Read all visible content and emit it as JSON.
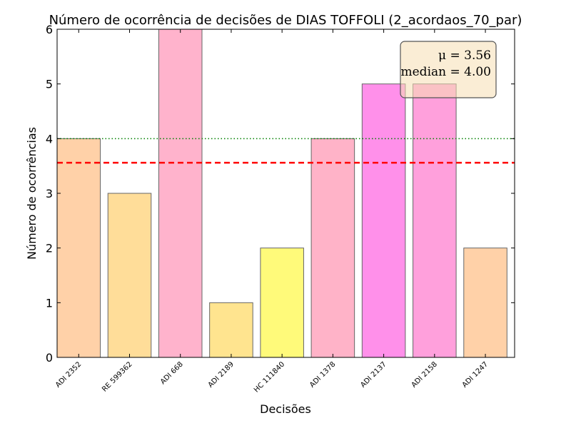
{
  "chart_data": {
    "type": "bar",
    "title": "Número de ocorrência de decisões de DIAS TOFFOLI (2_acordaos_70_par)",
    "xlabel": "Decisões",
    "ylabel": "Número de ocorrências",
    "categories": [
      "ADI 2352",
      "RE 599362",
      "ADI 668",
      "ADI 2189",
      "HC 111840",
      "ADI 1378",
      "ADI 2137",
      "ADI 2158",
      "ADI 1247"
    ],
    "values": [
      4,
      3,
      6,
      1,
      2,
      4,
      5,
      5,
      2
    ],
    "bar_colors": [
      "#FFD1A8",
      "#FFDD99",
      "#FFB3CC",
      "#FFE48F",
      "#FFFA7A",
      "#FFB3C8",
      "#FF90EA",
      "#FFA0DC",
      "#FFD1A8"
    ],
    "ylim": [
      0,
      6
    ],
    "yticks": [
      "0",
      "1",
      "2",
      "3",
      "4",
      "5",
      "6"
    ],
    "grid": false,
    "reference_lines": [
      {
        "kind": "mean",
        "value": 3.56,
        "color": "#FF0000",
        "style": "dashed"
      },
      {
        "kind": "median",
        "value": 4.0,
        "color": "#008000",
        "style": "dotted"
      }
    ],
    "stats_box": {
      "placement": "top-right",
      "mean_text": "μ = 3.56",
      "median_text": "median = 4.00",
      "fill": "#F5DEB3"
    }
  }
}
